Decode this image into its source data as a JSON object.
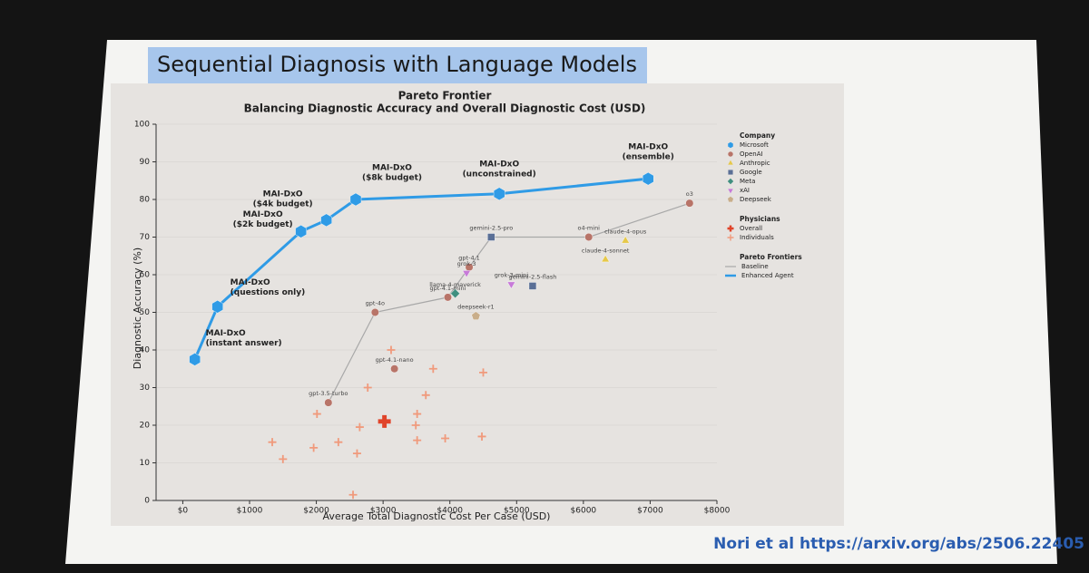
{
  "slide_title": "Sequential Diagnosis with Language Models",
  "citation": "Nori et al https://arxiv.org/abs/2506.22405",
  "chart_data": {
    "type": "scatter",
    "title": "Pareto Frontier",
    "subtitle": "Balancing Diagnostic Accuracy and Overall Diagnostic Cost (USD)",
    "xlabel": "Average Total Diagnostic Cost Per Case (USD)",
    "ylabel": "Diagnostic Accuracy (%)",
    "xlim": [
      -400,
      8000
    ],
    "ylim": [
      0,
      100
    ],
    "xticks": [
      {
        "value": 0,
        "label": "$0"
      },
      {
        "value": 1000,
        "label": "$1000"
      },
      {
        "value": 2000,
        "label": "$2000"
      },
      {
        "value": 3000,
        "label": "$3000"
      },
      {
        "value": 4000,
        "label": "$4000"
      },
      {
        "value": 5000,
        "label": "$5000"
      },
      {
        "value": 6000,
        "label": "$6000"
      },
      {
        "value": 7000,
        "label": "$7000"
      },
      {
        "value": 8000,
        "label": "$8000"
      }
    ],
    "yticks": [
      0,
      10,
      20,
      30,
      40,
      50,
      60,
      70,
      80,
      90,
      100
    ],
    "grid": true,
    "legend_titles": {
      "company": "Company",
      "physicians": "Physicians",
      "frontiers": "Pareto Frontiers"
    },
    "company_series": [
      {
        "name": "Microsoft",
        "color": "#2f9be6",
        "marker": "hexagon",
        "x": [
          180,
          520,
          1770,
          2150,
          2590,
          4740,
          6970
        ],
        "y": [
          37.5,
          51.5,
          71.5,
          74.5,
          80,
          81.5,
          85.5
        ],
        "labels": [
          [
            "MAI-DxO",
            "(instant answer)"
          ],
          [
            "MAI-DxO",
            "(questions only)"
          ],
          [
            "MAI-DxO",
            "($2k budget)"
          ],
          [
            "MAI-DxO",
            "($4k budget)"
          ],
          [
            "MAI-DxO",
            "($8k budget)"
          ],
          [
            "MAI-DxO",
            "(unconstrained)"
          ],
          [
            "MAI-DxO",
            "(ensemble)"
          ]
        ]
      },
      {
        "name": "OpenAI",
        "color": "#b87468",
        "marker": "circle",
        "x": [
          2180,
          2880,
          3970,
          3170,
          4290,
          6080,
          7590
        ],
        "y": [
          26,
          50,
          54,
          35,
          62,
          70,
          79
        ],
        "labels": [
          [
            "gpt-3.5-turbo"
          ],
          [
            "gpt-4o"
          ],
          [
            "gpt-4.1-mini"
          ],
          [
            "gpt-4.1-nano"
          ],
          [
            "gpt-4.1"
          ],
          [
            "o4-mini"
          ],
          [
            "o3"
          ]
        ]
      },
      {
        "name": "Anthropic",
        "color": "#e6c84a",
        "marker": "triangle-up",
        "x": [
          6630,
          6330
        ],
        "y": [
          69,
          64
        ],
        "labels": [
          [
            "claude-4-opus"
          ],
          [
            "claude-4-sonnet"
          ]
        ]
      },
      {
        "name": "Google",
        "color": "#5a6f96",
        "marker": "square",
        "x": [
          4620,
          5240
        ],
        "y": [
          70,
          57
        ],
        "labels": [
          [
            "gemini-2.5-pro"
          ],
          [
            "gemini-2.5-flash"
          ]
        ]
      },
      {
        "name": "Meta",
        "color": "#3f8f7f",
        "marker": "diamond",
        "x": [
          4080
        ],
        "y": [
          55
        ],
        "labels": [
          [
            "llama-4-maverick"
          ]
        ]
      },
      {
        "name": "xAI",
        "color": "#c77ad8",
        "marker": "triangle-down",
        "x": [
          4250,
          4920
        ],
        "y": [
          60.5,
          57.5
        ],
        "labels": [
          [
            "grok-3"
          ],
          [
            "grok-3-mini"
          ]
        ]
      },
      {
        "name": "Deepseek",
        "color": "#c9ae8a",
        "marker": "pentagon",
        "x": [
          4390
        ],
        "y": [
          49
        ],
        "labels": [
          [
            "deepseek-r1"
          ]
        ]
      }
    ],
    "physician_series": [
      {
        "name": "Overall",
        "color": "#e0442a",
        "marker": "plus-bold",
        "x": [
          3020
        ],
        "y": [
          21
        ]
      },
      {
        "name": "Individuals",
        "color": "#f09a7c",
        "marker": "plus",
        "x": [
          1340,
          1500,
          1960,
          2010,
          2330,
          2650,
          2610,
          2770,
          3120,
          3490,
          3510,
          3510,
          3640,
          3750,
          3930,
          4500,
          4480,
          2550
        ],
        "y": [
          15.5,
          11,
          14,
          23,
          15.5,
          19.5,
          12.5,
          30,
          40,
          20,
          16,
          23,
          28,
          35,
          16.5,
          34,
          17,
          1.5
        ]
      }
    ],
    "frontier_lines": [
      {
        "name": "Baseline",
        "color": "#a8a8a8",
        "x": [
          2180,
          2880,
          3970,
          4290,
          4620,
          6080,
          7590
        ],
        "y": [
          26,
          50,
          54,
          62,
          70,
          70,
          79
        ]
      },
      {
        "name": "Enhanced Agent",
        "color": "#2f9be6",
        "x": [
          180,
          520,
          1770,
          2150,
          2590,
          4740,
          6970
        ],
        "y": [
          37.5,
          51.5,
          71.5,
          74.5,
          80,
          81.5,
          85.5
        ]
      }
    ]
  }
}
